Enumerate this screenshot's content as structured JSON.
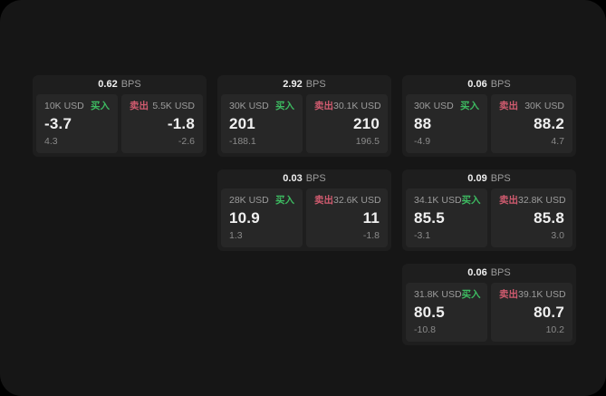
{
  "theme": {
    "page_bg": "#000000",
    "panel_bg": "#161616",
    "card_bg": "#1e1e1e",
    "tile_bg": "#272727",
    "text_primary": "#f0f0f0",
    "text_secondary": "#9c9c9c",
    "text_muted": "#8a8a8a",
    "buy_color": "#3dbb61",
    "sell_color": "#d05b6f"
  },
  "labels": {
    "bps_unit": "BPS",
    "buy": "买入",
    "sell": "卖出"
  },
  "cards": [
    {
      "row": 1,
      "col": 1,
      "bps": "0.62",
      "buy": {
        "size": "10K USD",
        "value": "-3.7",
        "delta": "4.3"
      },
      "sell": {
        "size": "5.5K USD",
        "value": "-1.8",
        "delta": "-2.6"
      }
    },
    {
      "row": 1,
      "col": 2,
      "bps": "2.92",
      "buy": {
        "size": "30K USD",
        "value": "201",
        "delta": "-188.1"
      },
      "sell": {
        "size": "30.1K USD",
        "value": "210",
        "delta": "196.5"
      }
    },
    {
      "row": 1,
      "col": 3,
      "bps": "0.06",
      "buy": {
        "size": "30K USD",
        "value": "88",
        "delta": "-4.9"
      },
      "sell": {
        "size": "30K USD",
        "value": "88.2",
        "delta": "4.7"
      }
    },
    {
      "row": 2,
      "col": 2,
      "bps": "0.03",
      "buy": {
        "size": "28K USD",
        "value": "10.9",
        "delta": "1.3"
      },
      "sell": {
        "size": "32.6K USD",
        "value": "11",
        "delta": "-1.8"
      }
    },
    {
      "row": 2,
      "col": 3,
      "bps": "0.09",
      "buy": {
        "size": "34.1K USD",
        "value": "85.5",
        "delta": "-3.1"
      },
      "sell": {
        "size": "32.8K USD",
        "value": "85.8",
        "delta": "3.0"
      }
    },
    {
      "row": 3,
      "col": 3,
      "bps": "0.06",
      "buy": {
        "size": "31.8K USD",
        "value": "80.5",
        "delta": "-10.8"
      },
      "sell": {
        "size": "39.1K USD",
        "value": "80.7",
        "delta": "10.2"
      }
    }
  ]
}
